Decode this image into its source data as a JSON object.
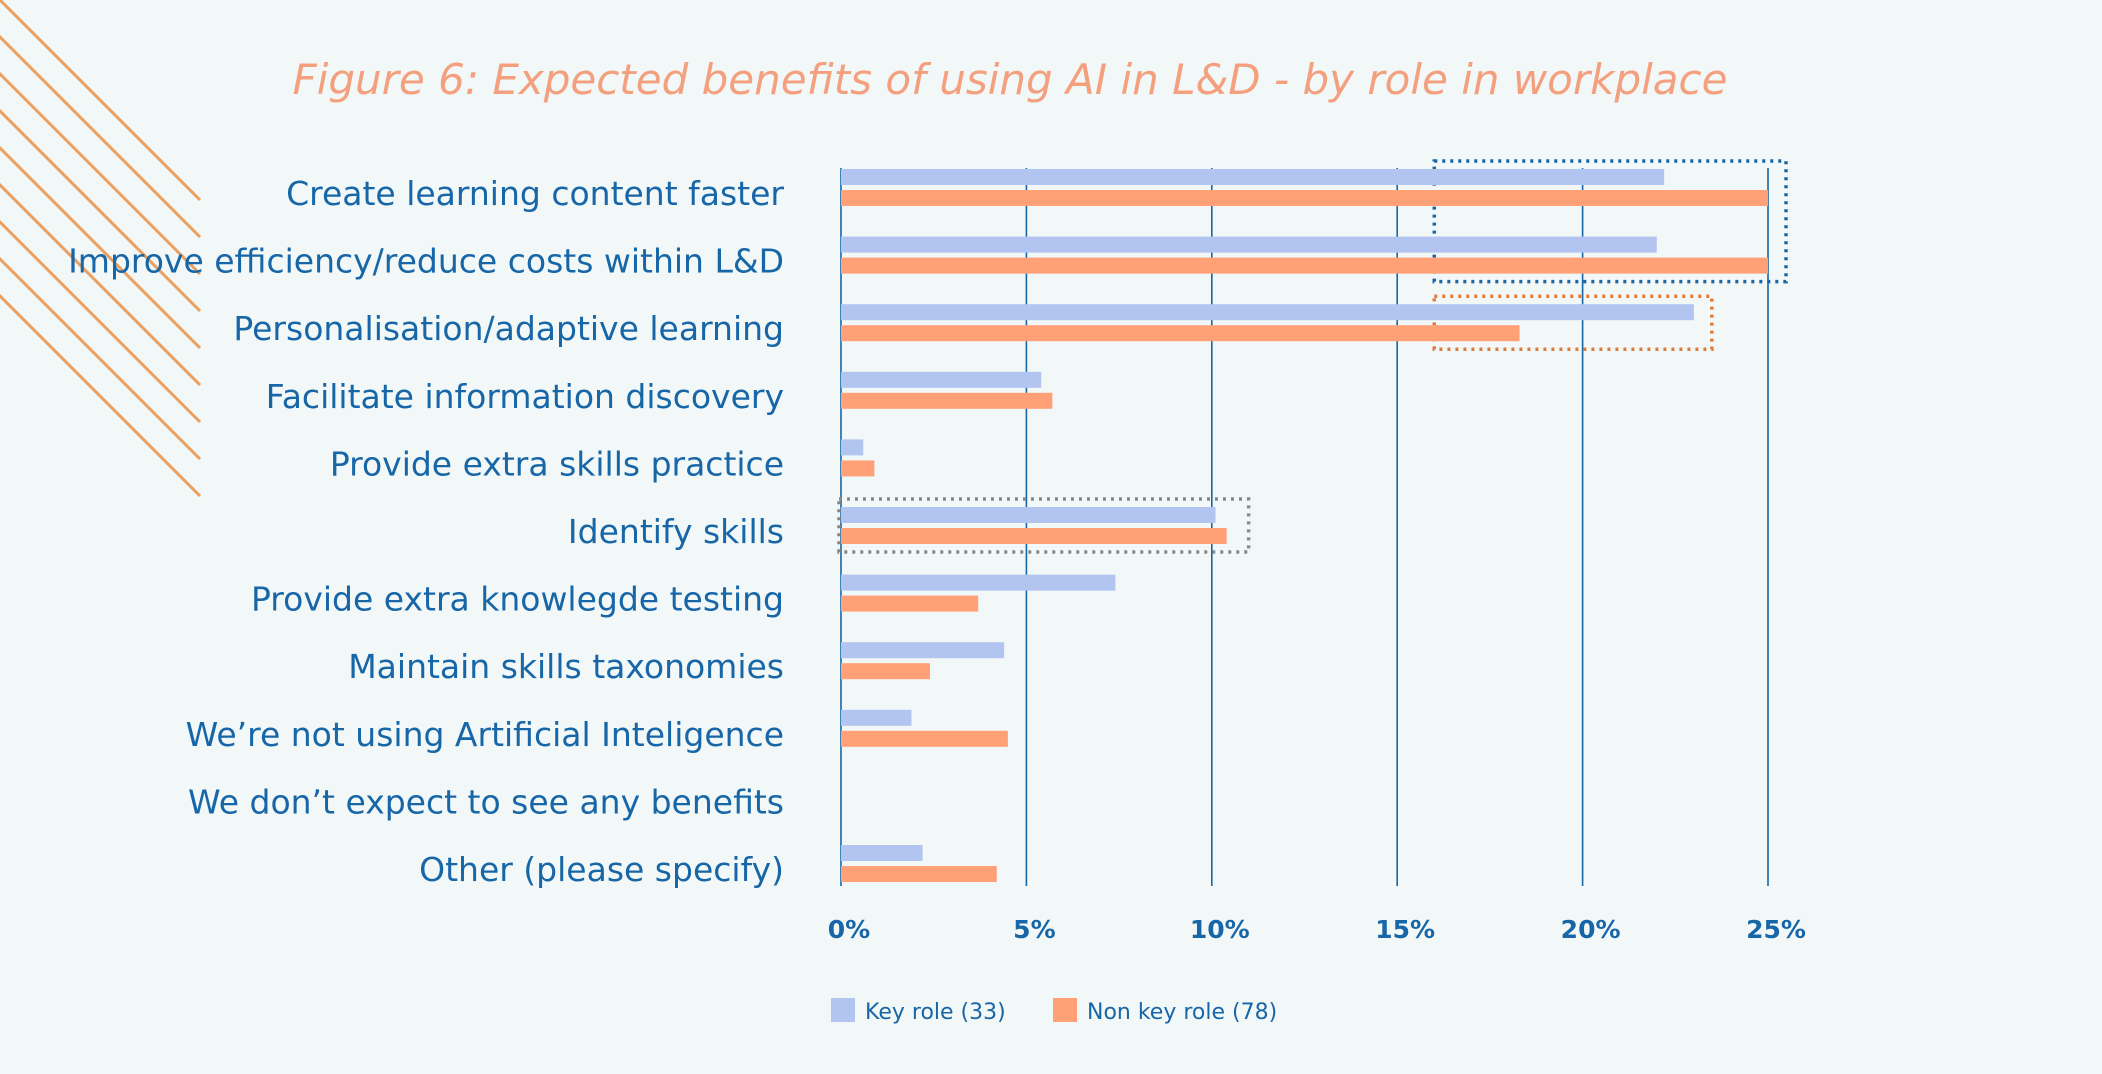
{
  "chart_data": {
    "type": "bar",
    "orientation": "horizontal",
    "title": "Figure 6: Expected benefits of using AI in L&D - by role in workplace",
    "categories": [
      "Create learning content faster",
      "Improve efficiency/reduce costs within L&D",
      "Personalisation/adaptive learning",
      "Facilitate information discovery",
      "Provide extra skills practice",
      "Identify skills",
      "Provide extra knowlegde testing",
      "Maintain skills taxonomies",
      "We’re not using Artificial Inteligence",
      "We don’t expect to see any benefits",
      "Other (please specify)"
    ],
    "series": [
      {
        "name": "Key role (33)",
        "color": "#b2c5f0",
        "values": [
          22.2,
          22.0,
          23.0,
          5.4,
          0.6,
          10.1,
          7.4,
          4.4,
          1.9,
          0,
          2.2
        ]
      },
      {
        "name": "Non key role (78)",
        "color": "#ffa077",
        "values": [
          25.0,
          25.0,
          18.3,
          5.7,
          0.9,
          10.4,
          3.7,
          2.4,
          4.5,
          0,
          4.2
        ]
      }
    ],
    "xlim": [
      0,
      25
    ],
    "xticks": [
      "0%",
      "5%",
      "10%",
      "15%",
      "20%",
      "25%"
    ],
    "grid": true,
    "legend_position": "bottom",
    "highlights": [
      {
        "color": "#1766a7",
        "categories": [
          "Create learning content faster",
          "Improve efficiency/reduce costs within L&D"
        ]
      },
      {
        "color": "#e07a3c",
        "categories": [
          "Personalisation/adaptive learning"
        ]
      },
      {
        "color": "#888888",
        "categories": [
          "Identify skills"
        ]
      }
    ]
  }
}
